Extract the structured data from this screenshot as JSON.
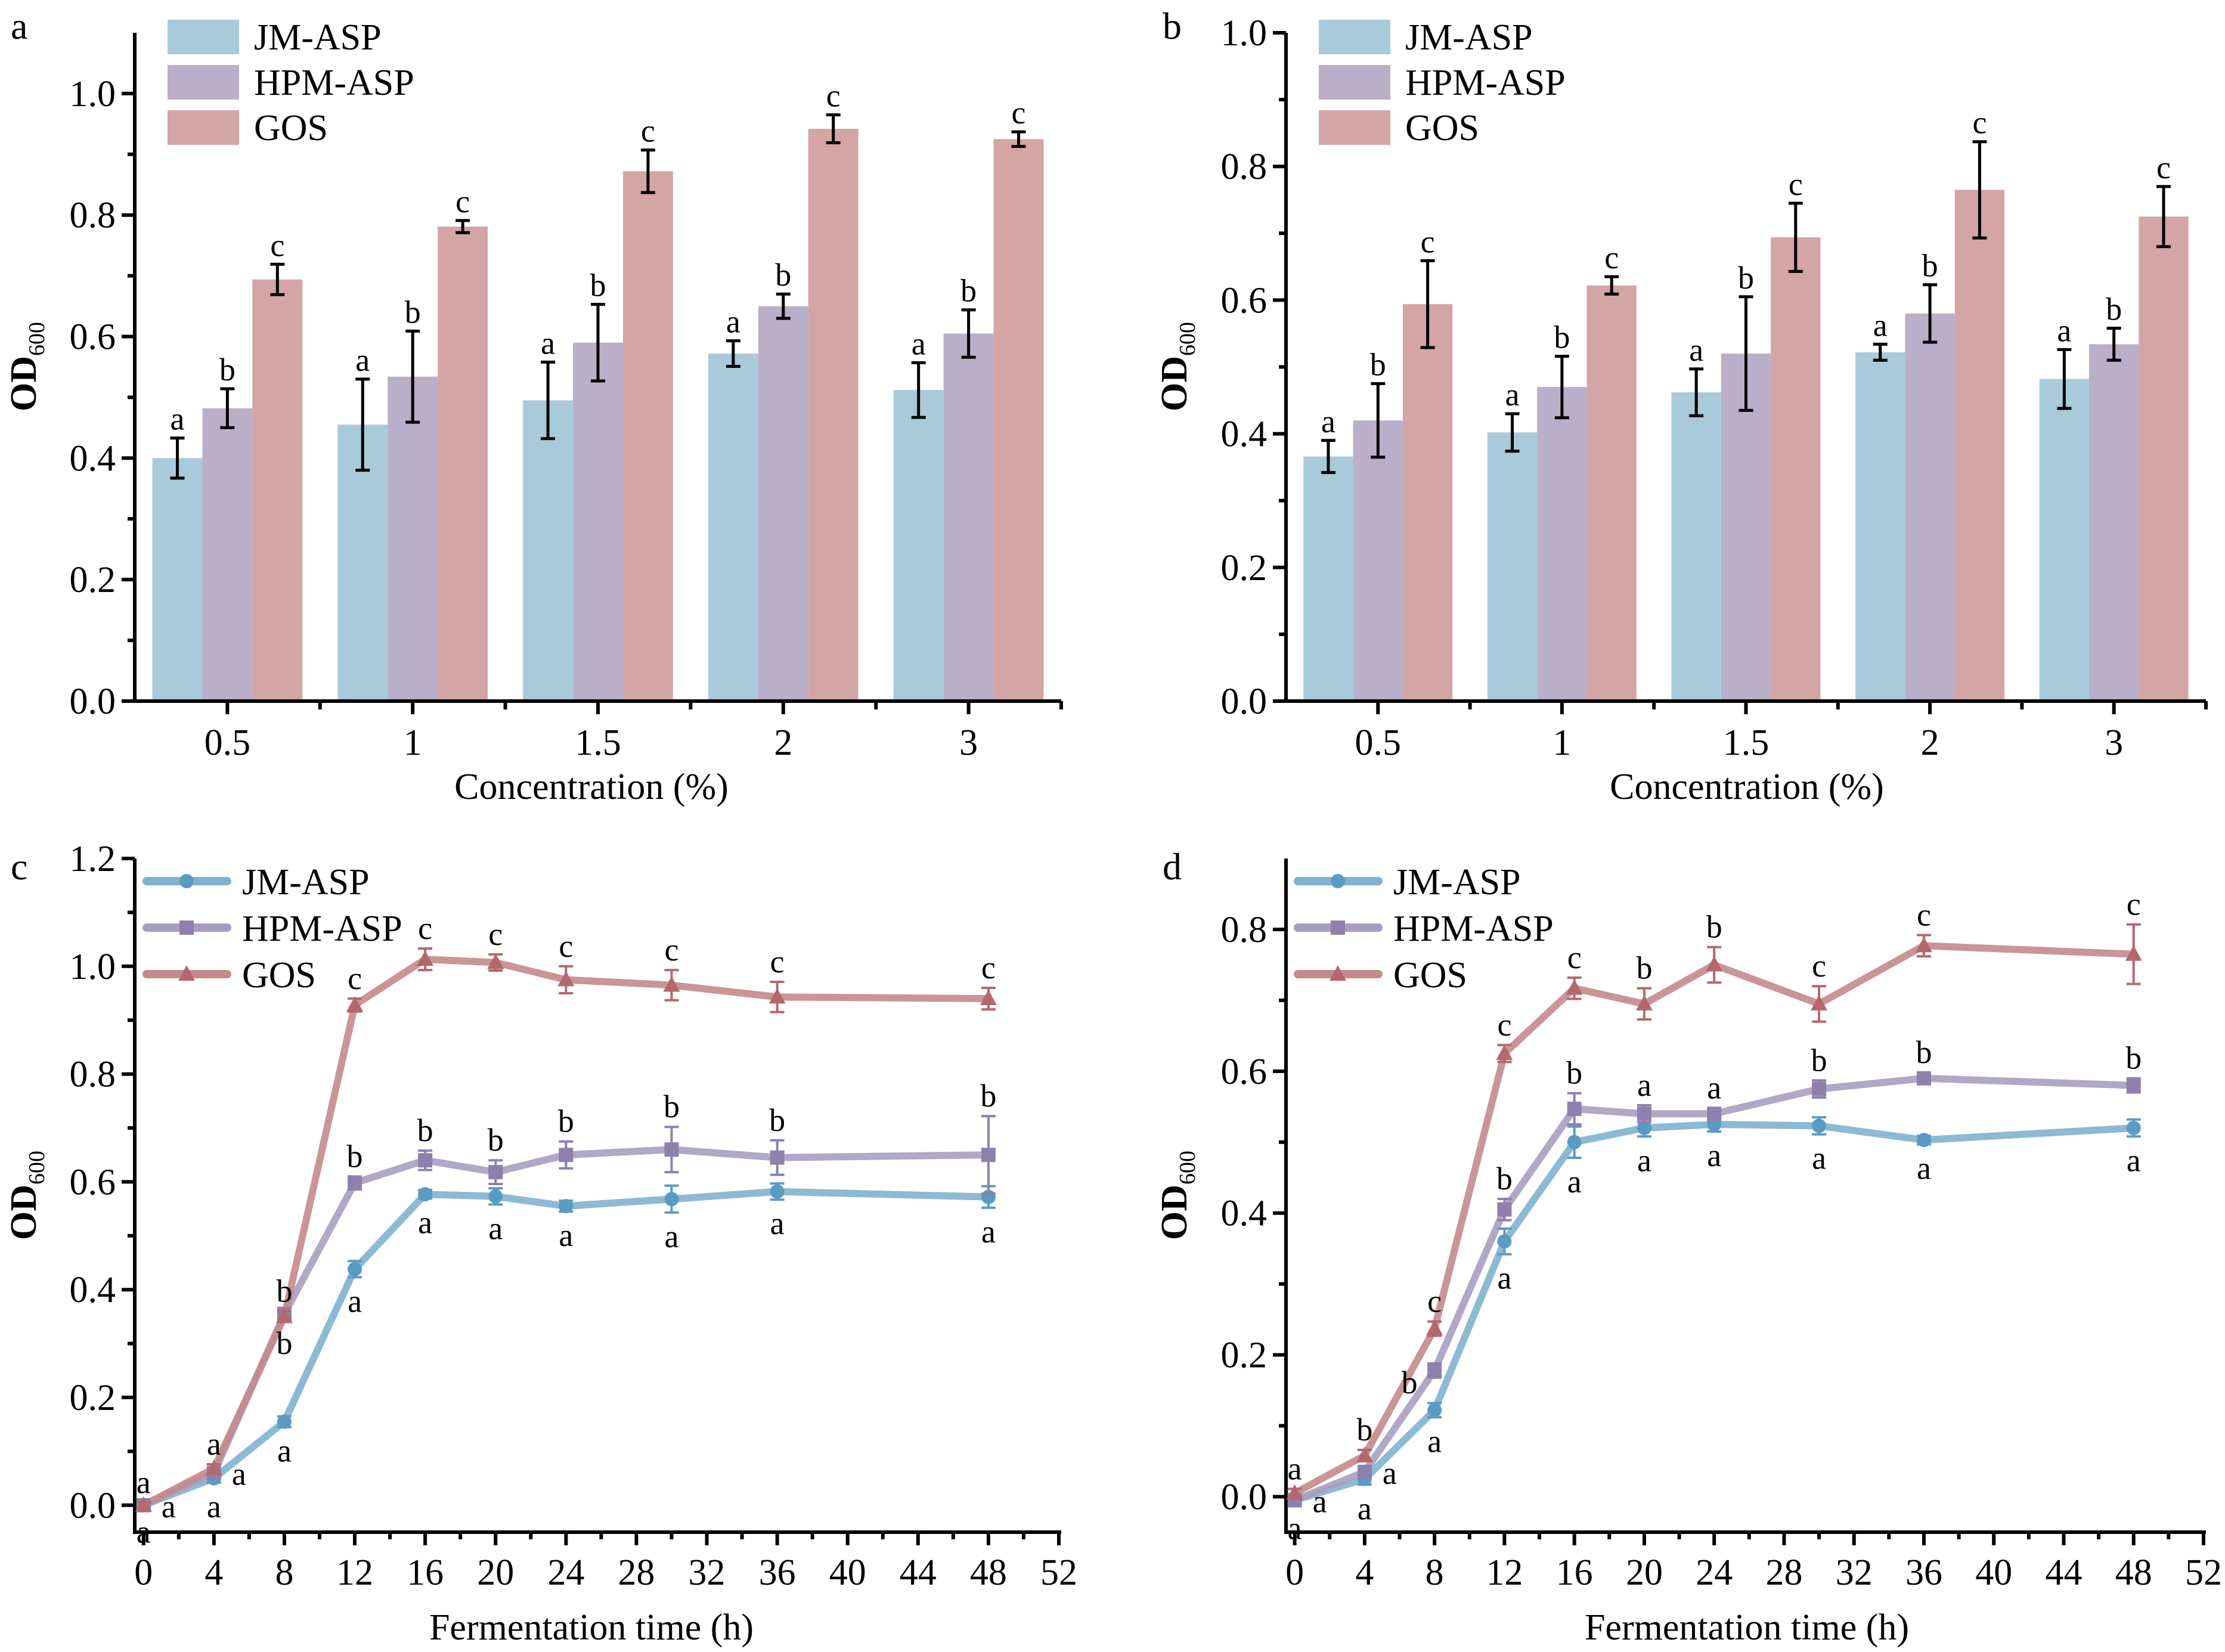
{
  "figure": {
    "panels": [
      "a",
      "b",
      "c",
      "d"
    ]
  },
  "colors": {
    "JM-ASP_bar": "#A8CADB",
    "HPM-ASP_bar": "#B9AFC9",
    "GOS_bar": "#D3A5A5",
    "JM-ASP_line": "#7FB2D0",
    "JM-ASP_marker": "#5A9BC4",
    "HPM-ASP_line": "#A89DC0",
    "HPM-ASP_marker": "#8E80AD",
    "GOS_line": "#C4898C",
    "GOS_marker": "#B4686D"
  },
  "chart_data": [
    {
      "panel": "a",
      "type": "bar",
      "title": "",
      "xlabel": "Concentration (%)",
      "ylabel": "OD",
      "ylabel_sub": "600",
      "ylim": [
        0,
        1.1
      ],
      "yticks": [
        "0.0",
        "0.2",
        "0.4",
        "0.6",
        "0.8",
        "1.0"
      ],
      "ytick_values": [
        0,
        0.2,
        0.4,
        0.6,
        0.8,
        1.0
      ],
      "categories": [
        "0.5",
        "1",
        "1.5",
        "2",
        "3"
      ],
      "legend": [
        "JM-ASP",
        "HPM-ASP",
        "GOS"
      ],
      "legend_position": "top-left",
      "grid": false,
      "series": [
        {
          "name": "JM-ASP",
          "values": [
            0.4,
            0.455,
            0.495,
            0.572,
            0.512
          ],
          "errors": [
            0.033,
            0.075,
            0.063,
            0.021,
            0.045
          ],
          "labels": [
            "a",
            "a",
            "a",
            "a",
            "a"
          ]
        },
        {
          "name": "HPM-ASP",
          "values": [
            0.482,
            0.534,
            0.59,
            0.65,
            0.605
          ],
          "errors": [
            0.032,
            0.075,
            0.063,
            0.02,
            0.039
          ],
          "labels": [
            "b",
            "b",
            "b",
            "b",
            "b"
          ]
        },
        {
          "name": "GOS",
          "values": [
            0.694,
            0.781,
            0.872,
            0.942,
            0.925
          ],
          "errors": [
            0.025,
            0.01,
            0.035,
            0.023,
            0.012
          ],
          "labels": [
            "c",
            "c",
            "c",
            "c",
            "c"
          ]
        }
      ]
    },
    {
      "panel": "b",
      "type": "bar",
      "title": "",
      "xlabel": "Concentration (%)",
      "ylabel": "OD",
      "ylabel_sub": "600",
      "ylim": [
        0,
        1.0
      ],
      "yticks": [
        "0.0",
        "0.2",
        "0.4",
        "0.6",
        "0.8",
        "1.0"
      ],
      "ytick_values": [
        0,
        0.2,
        0.4,
        0.6,
        0.8,
        1.0
      ],
      "categories": [
        "0.5",
        "1",
        "1.5",
        "2",
        "3"
      ],
      "legend": [
        "JM-ASP",
        "HPM-ASP",
        "GOS"
      ],
      "legend_position": "top-left",
      "grid": false,
      "series": [
        {
          "name": "JM-ASP",
          "values": [
            0.366,
            0.402,
            0.462,
            0.522,
            0.482
          ],
          "errors": [
            0.024,
            0.028,
            0.035,
            0.012,
            0.044
          ],
          "labels": [
            "a",
            "a",
            "a",
            "a",
            "a"
          ]
        },
        {
          "name": "HPM-ASP",
          "values": [
            0.42,
            0.47,
            0.52,
            0.58,
            0.534
          ],
          "errors": [
            0.055,
            0.046,
            0.085,
            0.043,
            0.024
          ],
          "labels": [
            "b",
            "b",
            "b",
            "b",
            "b"
          ]
        },
        {
          "name": "GOS",
          "values": [
            0.594,
            0.622,
            0.694,
            0.765,
            0.725
          ],
          "errors": [
            0.065,
            0.013,
            0.051,
            0.072,
            0.045
          ],
          "labels": [
            "c",
            "c",
            "c",
            "c",
            "c"
          ]
        }
      ]
    },
    {
      "panel": "c",
      "type": "line",
      "title": "",
      "xlabel": "Fermentation time (h)",
      "ylabel": "OD",
      "ylabel_sub": "600",
      "xlim": [
        -0.5,
        52
      ],
      "ylim": [
        -0.05,
        1.2
      ],
      "xticks": [
        "0",
        "4",
        "8",
        "12",
        "16",
        "20",
        "24",
        "28",
        "32",
        "36",
        "40",
        "44",
        "48",
        "52"
      ],
      "xtick_values": [
        0,
        4,
        8,
        12,
        16,
        20,
        24,
        28,
        32,
        36,
        40,
        44,
        48,
        52
      ],
      "yticks": [
        "0.0",
        "0.2",
        "0.4",
        "0.6",
        "0.8",
        "1.0",
        "1.2"
      ],
      "ytick_values": [
        0,
        0.2,
        0.4,
        0.6,
        0.8,
        1.0,
        1.2
      ],
      "x": [
        0,
        4,
        8,
        12,
        16,
        20,
        24,
        30,
        36,
        48
      ],
      "legend": [
        "JM-ASP",
        "HPM-ASP",
        "GOS"
      ],
      "legend_position": "top-left",
      "grid": false,
      "series": [
        {
          "name": "JM-ASP",
          "marker": "circle",
          "values": [
            0.0,
            0.05,
            0.155,
            0.438,
            0.577,
            0.573,
            0.555,
            0.568,
            0.582,
            0.572
          ],
          "errors": [
            0.005,
            0.008,
            0.01,
            0.015,
            0.008,
            0.015,
            0.01,
            0.025,
            0.015,
            0.02
          ],
          "labels": [
            "a",
            "a",
            "a",
            "a",
            "a",
            "a",
            "a",
            "a",
            "a",
            "a"
          ],
          "label_pos": [
            "below",
            "below",
            "below",
            "below",
            "below",
            "below",
            "below",
            "below",
            "below",
            "below"
          ]
        },
        {
          "name": "HPM-ASP",
          "marker": "square",
          "values": [
            0.0,
            0.06,
            0.355,
            0.598,
            0.64,
            0.618,
            0.65,
            0.66,
            0.645,
            0.65
          ],
          "errors": [
            0.005,
            0.008,
            0.01,
            0.012,
            0.018,
            0.022,
            0.025,
            0.042,
            0.032,
            0.072
          ],
          "labels": [
            "a",
            "a",
            "b",
            "b",
            "b",
            "b",
            "b",
            "b",
            "b",
            "b"
          ],
          "label_pos": [
            "right",
            "right",
            "below",
            "above",
            "above",
            "above",
            "above",
            "above",
            "above",
            "above"
          ]
        },
        {
          "name": "GOS",
          "marker": "triangle",
          "values": [
            0.0,
            0.068,
            0.35,
            0.928,
            1.013,
            1.007,
            0.975,
            0.965,
            0.943,
            0.94
          ],
          "errors": [
            0.005,
            0.008,
            0.01,
            0.012,
            0.02,
            0.015,
            0.025,
            0.028,
            0.028,
            0.02
          ],
          "labels": [
            "a",
            "a",
            "b",
            "c",
            "c",
            "c",
            "c",
            "c",
            "c",
            "c"
          ],
          "label_pos": [
            "above",
            "above",
            "above",
            "above",
            "above",
            "above",
            "above",
            "above",
            "above",
            "above"
          ]
        }
      ]
    },
    {
      "panel": "d",
      "type": "line",
      "title": "",
      "xlabel": "Fermentation time (h)",
      "ylabel": "OD",
      "ylabel_sub": "600",
      "xlim": [
        -0.5,
        52
      ],
      "ylim": [
        -0.05,
        0.9
      ],
      "xticks": [
        "0",
        "4",
        "8",
        "12",
        "16",
        "20",
        "24",
        "28",
        "32",
        "36",
        "40",
        "44",
        "48",
        "52"
      ],
      "xtick_values": [
        0,
        4,
        8,
        12,
        16,
        20,
        24,
        28,
        32,
        36,
        40,
        44,
        48,
        52
      ],
      "yticks": [
        "0.0",
        "0.2",
        "0.4",
        "0.6",
        "0.8"
      ],
      "ytick_values": [
        0,
        0.2,
        0.4,
        0.6,
        0.8
      ],
      "x": [
        0,
        4,
        8,
        12,
        16,
        20,
        24,
        30,
        36,
        48
      ],
      "legend": [
        "JM-ASP",
        "HPM-ASP",
        "GOS"
      ],
      "legend_position": "top-left",
      "grid": false,
      "series": [
        {
          "name": "JM-ASP",
          "marker": "circle",
          "values": [
            -0.005,
            0.025,
            0.122,
            0.36,
            0.5,
            0.52,
            0.525,
            0.523,
            0.503,
            0.52
          ],
          "errors": [
            0.006,
            0.008,
            0.01,
            0.018,
            0.022,
            0.012,
            0.01,
            0.012,
            0.006,
            0.012
          ],
          "labels": [
            "a",
            "a",
            "a",
            "a",
            "a",
            "a",
            "a",
            "a",
            "a",
            "a"
          ],
          "label_pos": [
            "below",
            "below",
            "below",
            "below",
            "below",
            "below",
            "below",
            "below",
            "below",
            "below"
          ]
        },
        {
          "name": "HPM-ASP",
          "marker": "square",
          "values": [
            -0.005,
            0.035,
            0.178,
            0.405,
            0.547,
            0.54,
            0.54,
            0.575,
            0.59,
            0.58
          ],
          "errors": [
            0.006,
            0.008,
            0.01,
            0.015,
            0.022,
            0.012,
            0.008,
            0.012,
            0.008,
            0.01
          ],
          "labels": [
            "a",
            "a",
            "b",
            "b",
            "b",
            "a",
            "a",
            "b",
            "b",
            "b"
          ],
          "label_pos": [
            "right",
            "right",
            "left",
            "above",
            "above",
            "above",
            "above",
            "above",
            "above",
            "above"
          ]
        },
        {
          "name": "GOS",
          "marker": "triangle",
          "values": [
            0.005,
            0.058,
            0.237,
            0.625,
            0.717,
            0.695,
            0.75,
            0.695,
            0.777,
            0.765
          ],
          "errors": [
            0.006,
            0.008,
            0.01,
            0.012,
            0.015,
            0.022,
            0.025,
            0.025,
            0.015,
            0.042
          ],
          "labels": [
            "a",
            "b",
            "c",
            "c",
            "c",
            "b",
            "b",
            "c",
            "c",
            "c"
          ],
          "label_pos": [
            "above",
            "above",
            "above",
            "above",
            "above",
            "above",
            "above",
            "above",
            "above",
            "above"
          ]
        }
      ]
    }
  ]
}
